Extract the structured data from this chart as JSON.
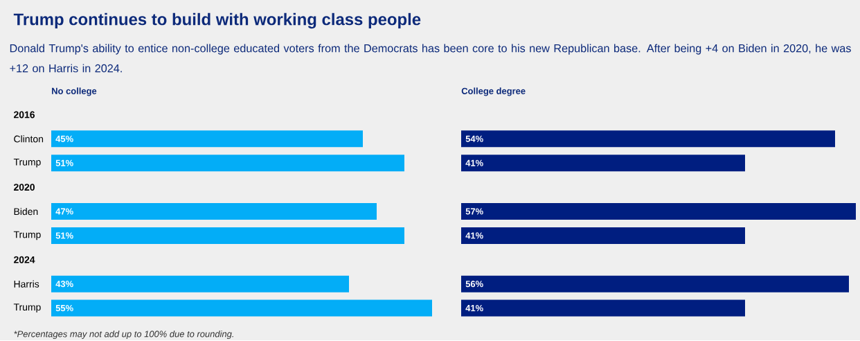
{
  "chart_data": [
    {
      "type": "other",
      "title": "Trump continues to build with working class people",
      "subtitle": "Donald Trump's ability to entice non-college educated voters from the Democrats has been core to his new Republican base. After being +4 on Biden in 2020, he was +12 on Harris in 2024.",
      "annotations": [
        "*Percentages may not add up to 100% due to rounding."
      ]
    },
    {
      "type": "bar",
      "orientation": "horizontal",
      "title": "No college",
      "categories": [
        "2016",
        "Clinton",
        "Trump",
        "2020",
        "Biden",
        "Trump",
        "2024",
        "Harris",
        "Trump"
      ],
      "values": [
        null,
        45,
        51,
        null,
        47,
        51,
        null,
        43,
        55
      ],
      "value_labels": [
        null,
        "45%",
        "51%",
        null,
        "47%",
        "51%",
        null,
        "43%",
        "55%"
      ],
      "color": "#03adf7",
      "tick_labels": "y"
    },
    {
      "type": "bar",
      "orientation": "horizontal",
      "title": "College degree",
      "values": [
        null,
        54,
        41,
        null,
        57,
        41,
        null,
        56,
        41
      ],
      "value_labels": [
        null,
        "54%",
        "41%",
        null,
        "57%",
        "41%",
        null,
        "56%",
        "41%"
      ],
      "color": "#001e80"
    }
  ]
}
